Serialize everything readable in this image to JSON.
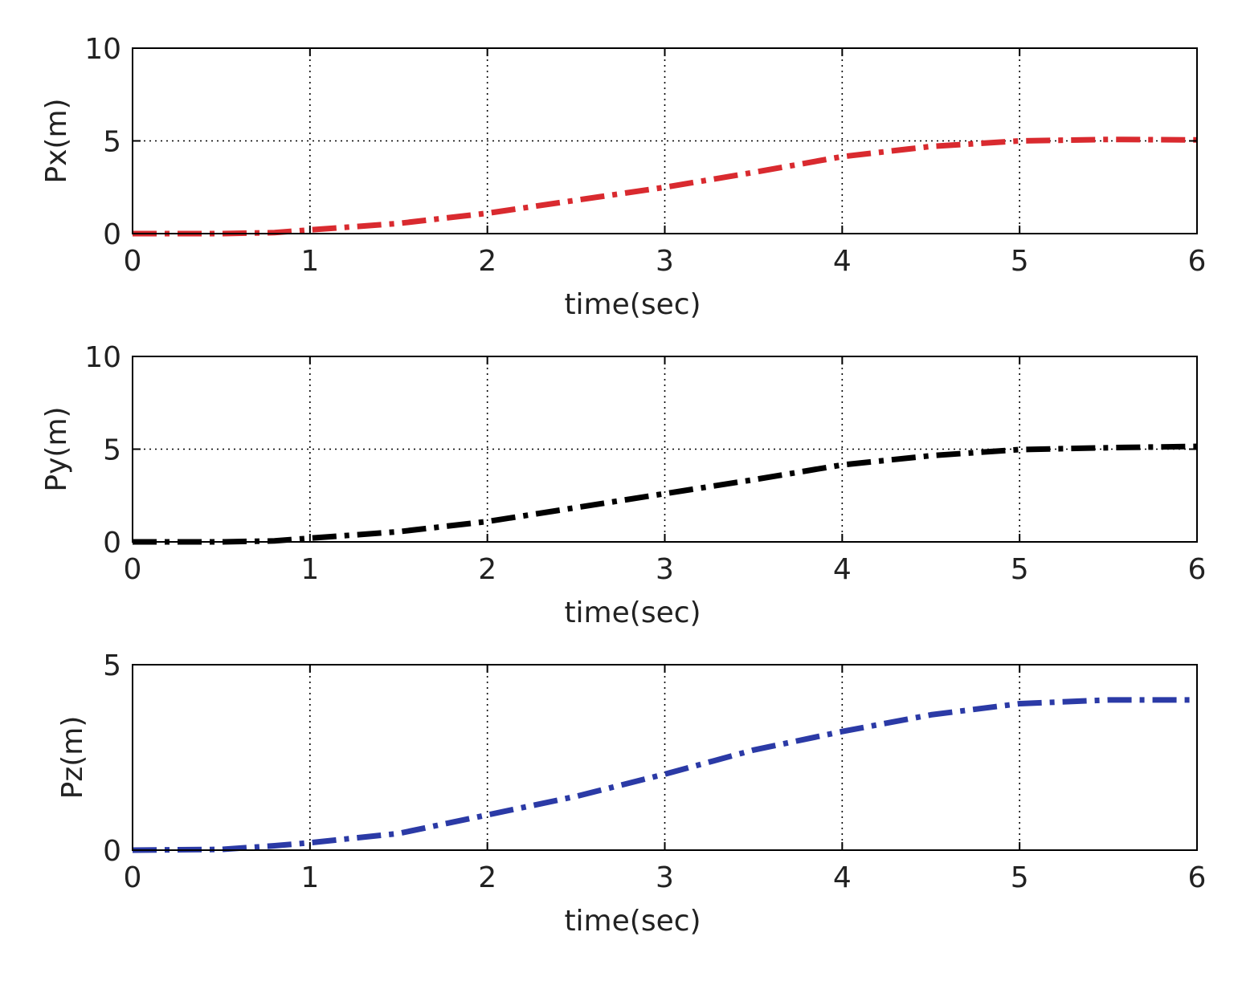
{
  "chart_data": [
    {
      "type": "line",
      "xlabel": "time(sec)",
      "ylabel": "Px(m)",
      "xlim": [
        0,
        6
      ],
      "ylim": [
        0,
        10
      ],
      "xticks": [
        0,
        1,
        2,
        3,
        4,
        5,
        6
      ],
      "yticks": [
        0,
        5,
        10
      ],
      "grid": true,
      "series": [
        {
          "color": "#d92a2f",
          "line_style": "dash-dot",
          "x": [
            0,
            0.5,
            0.8,
            1,
            1.5,
            2,
            2.5,
            3,
            3.5,
            4,
            4.5,
            5,
            5.5,
            6
          ],
          "y": [
            0,
            0,
            0.05,
            0.2,
            0.55,
            1.1,
            1.8,
            2.5,
            3.3,
            4.15,
            4.7,
            5.0,
            5.08,
            5.05
          ]
        }
      ]
    },
    {
      "type": "line",
      "xlabel": "time(sec)",
      "ylabel": "Py(m)",
      "xlim": [
        0,
        6
      ],
      "ylim": [
        0,
        10
      ],
      "xticks": [
        0,
        1,
        2,
        3,
        4,
        5,
        6
      ],
      "yticks": [
        0,
        5,
        10
      ],
      "grid": true,
      "series": [
        {
          "color": "#000000",
          "line_style": "dash-dot",
          "x": [
            0,
            0.5,
            0.8,
            1,
            1.5,
            2,
            2.5,
            3,
            3.5,
            4,
            4.5,
            5,
            5.5,
            6
          ],
          "y": [
            0,
            0,
            0.05,
            0.2,
            0.55,
            1.1,
            1.85,
            2.6,
            3.35,
            4.15,
            4.65,
            4.98,
            5.08,
            5.15
          ]
        }
      ]
    },
    {
      "type": "line",
      "xlabel": "time(sec)",
      "ylabel": "Pz(m)",
      "xlim": [
        0,
        6
      ],
      "ylim": [
        0,
        5
      ],
      "xticks": [
        0,
        1,
        2,
        3,
        4,
        5,
        6
      ],
      "yticks": [
        0,
        5
      ],
      "grid": true,
      "series": [
        {
          "color": "#2b3aa6",
          "line_style": "dash-dot",
          "x": [
            0,
            0.5,
            0.8,
            1,
            1.5,
            2,
            2.5,
            3,
            3.5,
            4,
            4.5,
            5,
            5.5,
            6
          ],
          "y": [
            0,
            0.02,
            0.12,
            0.2,
            0.45,
            0.95,
            1.45,
            2.05,
            2.7,
            3.2,
            3.65,
            3.95,
            4.05,
            4.05
          ]
        }
      ]
    }
  ]
}
